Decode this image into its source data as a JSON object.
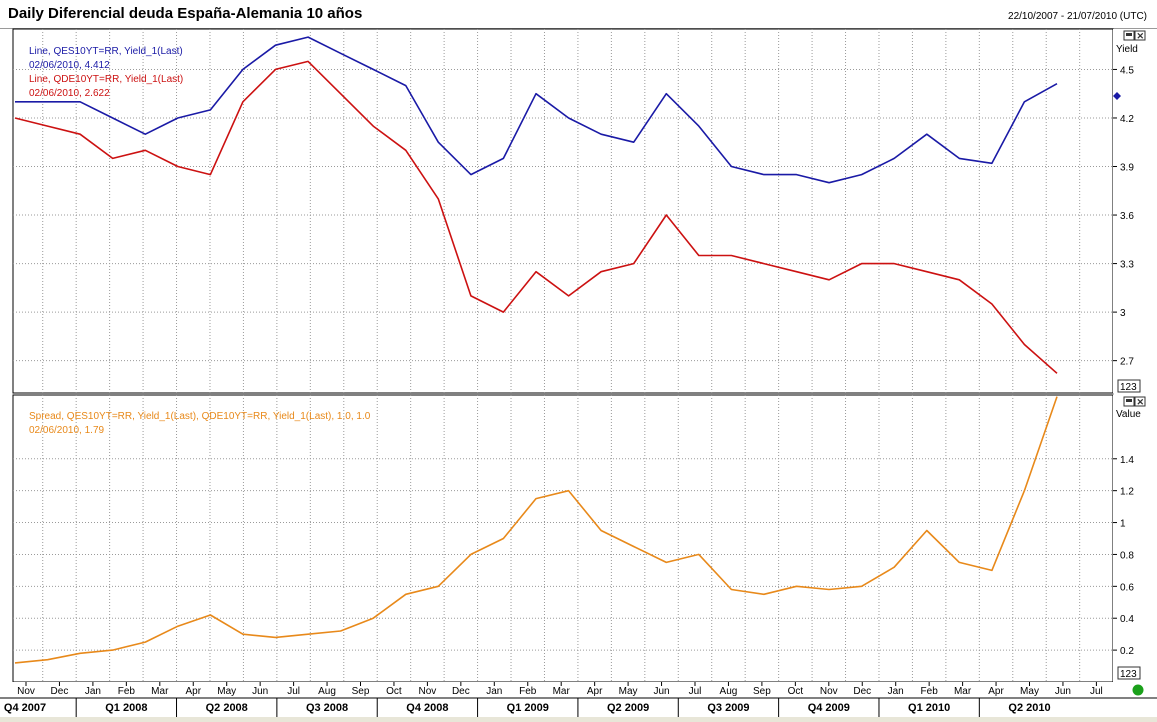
{
  "window": {
    "title": "Daily Diferencial deuda España-Alemania 10 años",
    "date_range": "22/10/2007 - 21/07/2010 (UTC)"
  },
  "top_panel": {
    "axis_label": "Yield",
    "scale_button": "123",
    "legend": [
      {
        "line1": "Line, QES10YT=RR, Yield_1(Last)",
        "line2": "02/06/2010, 4.412",
        "color": "#1a1aa6"
      },
      {
        "line1": "Line, QDE10YT=RR, Yield_1(Last)",
        "line2": "02/06/2010, 2.622",
        "color": "#cc1111"
      }
    ]
  },
  "bottom_panel": {
    "axis_label": "Value",
    "scale_button": "123",
    "legend": [
      {
        "line1": "Spread, QES10YT=RR, Yield_1(Last), QDE10YT=RR, Yield_1(Last), 1.0, 1.0",
        "line2": "02/06/2010, 1.79",
        "color": "#e8891a"
      }
    ]
  },
  "x_axis": {
    "months": [
      "Nov",
      "Dec",
      "Jan",
      "Feb",
      "Mar",
      "Apr",
      "May",
      "Jun",
      "Jul",
      "Aug",
      "Sep",
      "Oct",
      "Nov",
      "Dec",
      "Jan",
      "Feb",
      "Mar",
      "Apr",
      "May",
      "Jun",
      "Jul",
      "Aug",
      "Sep",
      "Oct",
      "Nov",
      "Dec",
      "Jan",
      "Feb",
      "Mar",
      "Apr",
      "May",
      "Jun",
      "Jul"
    ],
    "quarters": [
      "Q4 2007",
      "Q1 2008",
      "Q2 2008",
      "Q3 2008",
      "Q4 2008",
      "Q1 2009",
      "Q2 2009",
      "Q3 2009",
      "Q4 2009",
      "Q1 2010",
      "Q2 2010"
    ]
  },
  "chart_data": [
    {
      "type": "line",
      "ylabel": "Yield",
      "ylim": [
        2.5,
        4.75
      ],
      "yticks": [
        2.7,
        3,
        3.3,
        3.6,
        3.9,
        4.2,
        4.5
      ],
      "ytick_labels": [
        "2.7",
        "3",
        "3.3",
        "3.6",
        "3.9",
        "4.2",
        "4.5"
      ],
      "x": [
        "2007-10",
        "2007-11",
        "2007-12",
        "2008-01",
        "2008-02",
        "2008-03",
        "2008-04",
        "2008-05",
        "2008-06",
        "2008-07",
        "2008-08",
        "2008-09",
        "2008-10",
        "2008-11",
        "2008-12",
        "2009-01",
        "2009-02",
        "2009-03",
        "2009-04",
        "2009-05",
        "2009-06",
        "2009-07",
        "2009-08",
        "2009-09",
        "2009-10",
        "2009-11",
        "2009-12",
        "2010-01",
        "2010-02",
        "2010-03",
        "2010-04",
        "2010-05",
        "2010-06"
      ],
      "series": [
        {
          "name": "QES10YT=RR",
          "color": "#1a1aa6",
          "values": [
            4.3,
            4.3,
            4.3,
            4.2,
            4.1,
            4.2,
            4.25,
            4.5,
            4.65,
            4.7,
            4.6,
            4.5,
            4.4,
            4.05,
            3.85,
            3.95,
            4.35,
            4.2,
            4.1,
            4.05,
            4.35,
            4.15,
            3.9,
            3.85,
            3.85,
            3.8,
            3.85,
            3.95,
            4.1,
            3.95,
            3.92,
            4.3,
            4.412
          ]
        },
        {
          "name": "QDE10YT=RR",
          "color": "#cc1111",
          "values": [
            4.2,
            4.15,
            4.1,
            3.95,
            4.0,
            3.9,
            3.85,
            4.3,
            4.5,
            4.55,
            4.35,
            4.15,
            4.0,
            3.7,
            3.1,
            3.0,
            3.25,
            3.1,
            3.25,
            3.3,
            3.6,
            3.35,
            3.35,
            3.3,
            3.25,
            3.2,
            3.3,
            3.3,
            3.25,
            3.2,
            3.05,
            2.8,
            2.622
          ]
        }
      ]
    },
    {
      "type": "line",
      "ylabel": "Value",
      "ylim": [
        0,
        1.8
      ],
      "yticks": [
        0.2,
        0.4,
        0.6,
        0.8,
        1,
        1.2,
        1.4
      ],
      "ytick_labels": [
        "0.2",
        "0.4",
        "0.6",
        "0.8",
        "1",
        "1.2",
        "1.4"
      ],
      "series": [
        {
          "name": "Spread",
          "color": "#e8891a",
          "values": [
            0.12,
            0.14,
            0.18,
            0.2,
            0.25,
            0.35,
            0.42,
            0.3,
            0.28,
            0.3,
            0.32,
            0.4,
            0.55,
            0.6,
            0.8,
            0.9,
            1.15,
            1.2,
            0.95,
            0.85,
            0.75,
            0.8,
            0.58,
            0.55,
            0.6,
            0.58,
            0.6,
            0.72,
            0.95,
            0.75,
            0.7,
            1.2,
            1.79
          ]
        }
      ]
    }
  ]
}
